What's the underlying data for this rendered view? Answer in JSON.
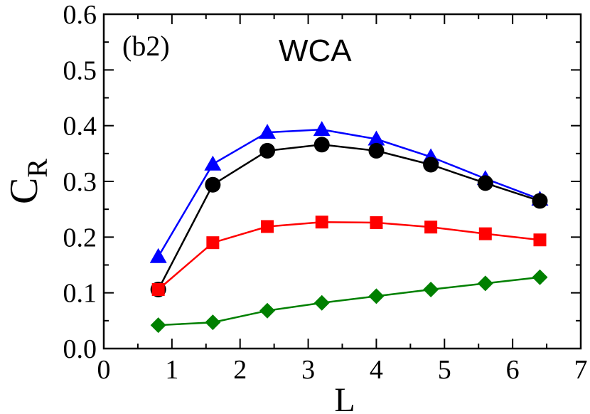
{
  "chart_data": {
    "type": "line",
    "panel_label": "(b2)",
    "title": "WCA",
    "xlabel": "L",
    "ylabel": "C",
    "ylabel_subscript": "R",
    "xlim": [
      0,
      7
    ],
    "ylim": [
      0.0,
      0.6
    ],
    "xticks": [
      0,
      1,
      2,
      3,
      4,
      5,
      6,
      7
    ],
    "xtick_labels": [
      "0",
      "1",
      "2",
      "3",
      "4",
      "5",
      "6",
      "7"
    ],
    "yticks": [
      0.0,
      0.1,
      0.2,
      0.3,
      0.4,
      0.5,
      0.6
    ],
    "ytick_labels": [
      "0.0",
      "0.1",
      "0.2",
      "0.3",
      "0.4",
      "0.5",
      "0.6"
    ],
    "grid": false,
    "x": [
      0.8,
      1.6,
      2.4,
      3.2,
      4.0,
      4.8,
      5.6,
      6.4
    ],
    "series": [
      {
        "name": "triangle-blue",
        "color": "#0000ff",
        "marker": "triangle",
        "values": [
          0.165,
          0.331,
          0.388,
          0.393,
          0.376,
          0.344,
          0.305,
          0.268
        ]
      },
      {
        "name": "circle-black",
        "color": "#000000",
        "marker": "circle",
        "values": [
          0.106,
          0.294,
          0.355,
          0.366,
          0.355,
          0.33,
          0.297,
          0.265
        ]
      },
      {
        "name": "square-red",
        "color": "#ff0000",
        "marker": "square",
        "values": [
          0.106,
          0.19,
          0.219,
          0.227,
          0.226,
          0.218,
          0.206,
          0.195
        ]
      },
      {
        "name": "diamond-green",
        "color": "#008000",
        "marker": "diamond",
        "values": [
          0.042,
          0.047,
          0.068,
          0.082,
          0.094,
          0.106,
          0.117,
          0.128
        ]
      }
    ]
  }
}
